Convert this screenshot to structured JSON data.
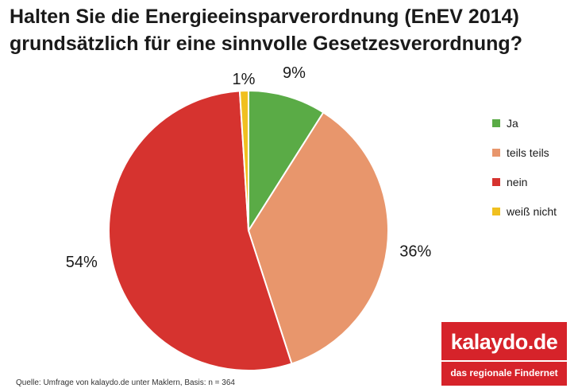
{
  "title": {
    "line1": "Halten Sie die Energieeinsparverordnung (EnEV 2014)",
    "line2": "grundsätzlich für eine sinnvolle Gesetzesverordnung?"
  },
  "chart_data": {
    "type": "pie",
    "title": "Halten Sie die Energieeinsparverordnung (EnEV 2014) grundsätzlich für eine sinnvolle Gesetzesverordnung?",
    "categories": [
      "Ja",
      "teils teils",
      "nein",
      "weiß nicht"
    ],
    "values": [
      9,
      36,
      54,
      1
    ],
    "labels": [
      "9%",
      "36%",
      "54%",
      "1%"
    ],
    "colors": [
      "#5aab46",
      "#e8966c",
      "#d6332f",
      "#f0c020"
    ],
    "start": "top, clockwise",
    "legend_position": "right"
  },
  "legend": {
    "items": [
      "Ja",
      "teils teils",
      "nein",
      "weiß nicht"
    ]
  },
  "source": "Quelle: Umfrage von kalaydo.de unter Maklern,  Basis: n = 364",
  "logo": {
    "wordmark": "kalaydo.de",
    "tagline": "das regionale Findernet",
    "color": "#d6232a"
  }
}
